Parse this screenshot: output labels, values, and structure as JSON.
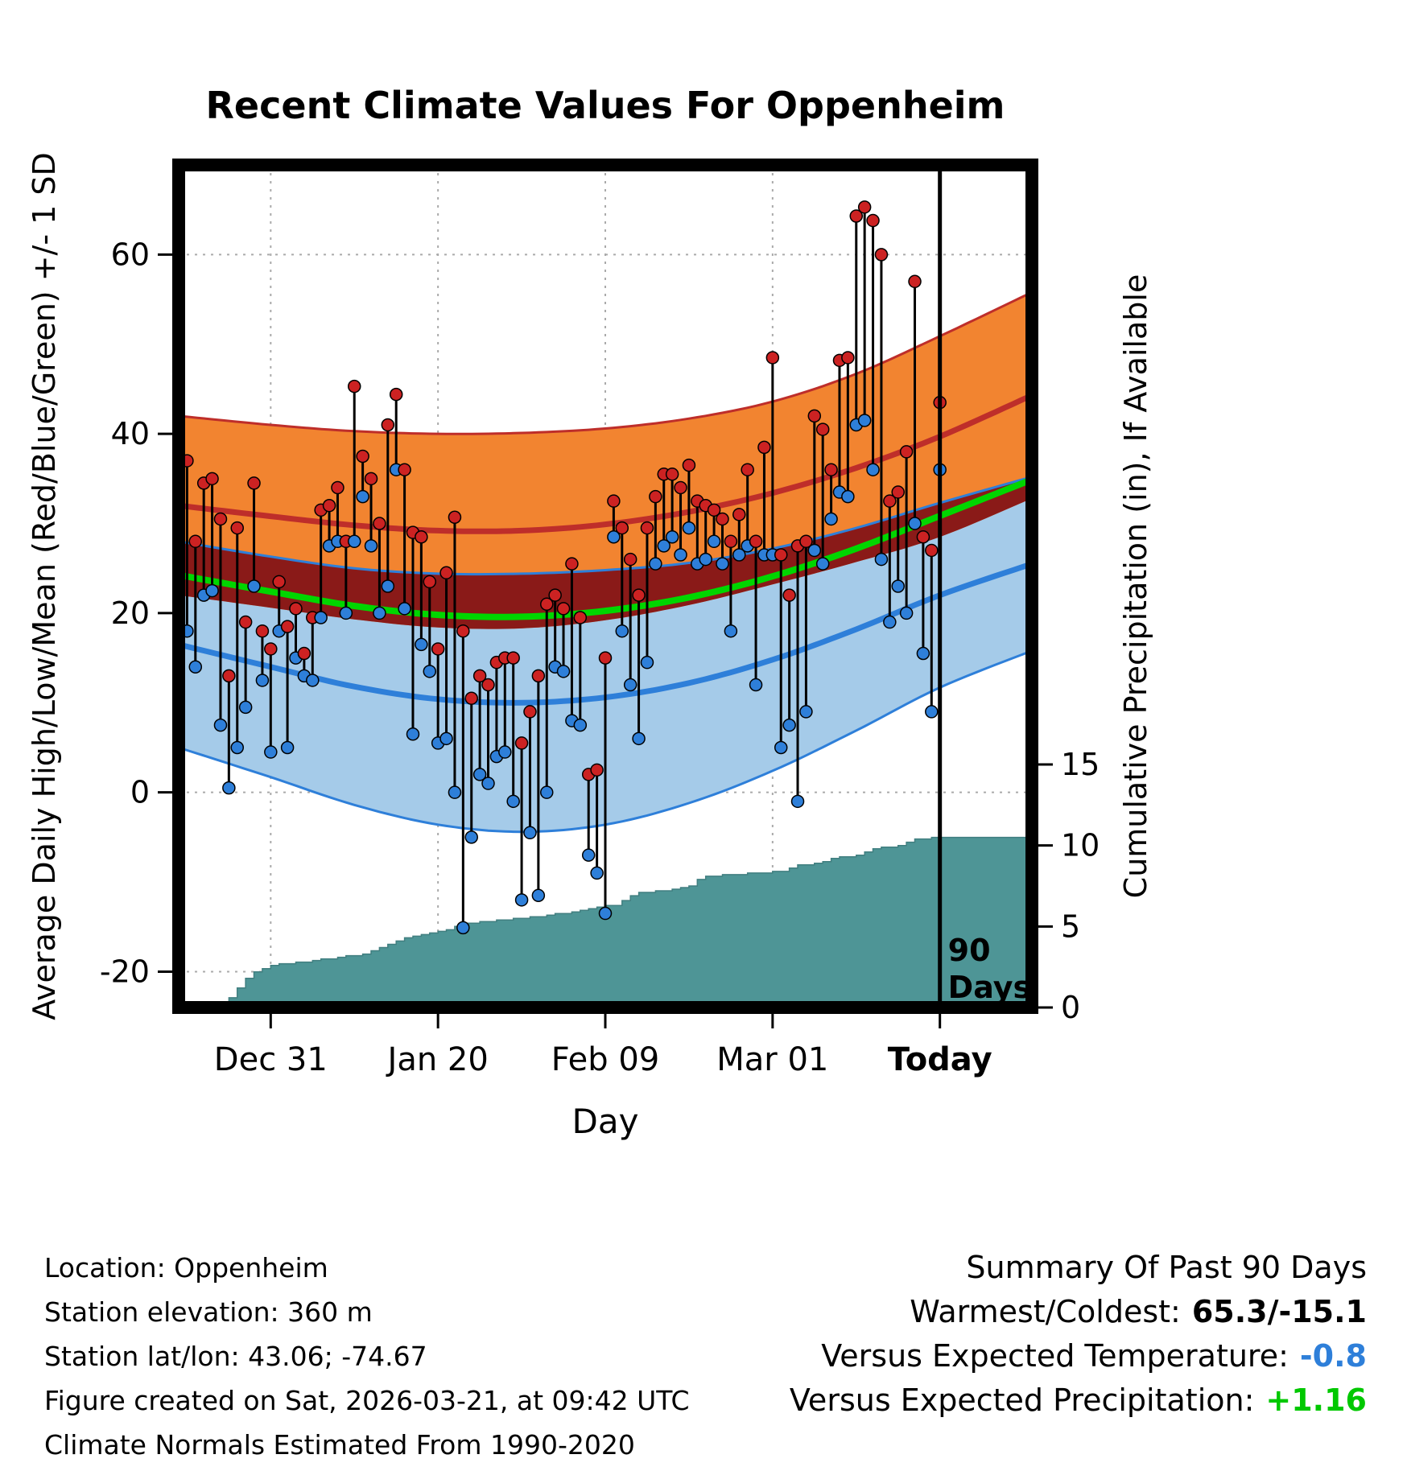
{
  "title": "Recent Climate Values For Oppenheim",
  "footer": {
    "location": "Location: Oppenheim",
    "elevation": "Station elevation: 360 m",
    "latlon": "Station lat/lon: 43.06; -74.67",
    "created": "Figure created on Sat, 2026-03-21, at 09:42 UTC",
    "normals_note": "Climate Normals Estimated From 1990-2020"
  },
  "summary": {
    "title": "Summary Of Past 90 Days",
    "warmest_label": "Warmest/Coldest:",
    "warmest_value": "65.3/-15.1",
    "temp_label": "Versus Expected Temperature:",
    "temp_value": "-0.8",
    "precip_label": "Versus Expected Precipitation:",
    "precip_value": "+1.16"
  },
  "colors": {
    "high_band": "#F28430",
    "high_line": "#BE2E2A",
    "low_band": "#A5CBE9",
    "low_line": "#2E7FD9",
    "overlap_band": "#8A1A18",
    "mean_line": "#00D600",
    "precip_fill": "#4E9596",
    "precip_edge": "#417F80",
    "grid": "#AAAAAA",
    "frame": "#000000",
    "obs_line": "#000000",
    "high_dot": "#CC2222",
    "low_dot": "#2E7FD9",
    "summary_temp": "#2E7FD9",
    "summary_precip": "#00C800"
  },
  "chart_data": {
    "type": "combo",
    "subtypes": [
      "band",
      "line",
      "scatter-range",
      "step-area"
    ],
    "title": "Recent Climate Values For Oppenheim",
    "xlabel": "Day",
    "ylabel_left": "Average Daily High/Low/Mean (Red/Blue/Green) +/- 1 SD",
    "ylabel_right": "Cumulative Precipitation (in), If Available",
    "xlim_days": [
      -1,
      101
    ],
    "ylim_left": [
      -24,
      70
    ],
    "ylim_right": [
      0,
      52
    ],
    "x_ticks": [
      {
        "label": "Dec 31",
        "day": 10,
        "bold": false
      },
      {
        "label": "Jan 20",
        "day": 30,
        "bold": false
      },
      {
        "label": "Feb 09",
        "day": 50,
        "bold": false
      },
      {
        "label": "Mar 01",
        "day": 70,
        "bold": false
      },
      {
        "label": "Today",
        "day": 90,
        "bold": true
      }
    ],
    "y_ticks_left": [
      -20,
      0,
      20,
      40,
      60
    ],
    "y_ticks_right": [
      0,
      5,
      10,
      15
    ],
    "marker": {
      "day": 90,
      "label_line1": "90",
      "label_line2": "Days"
    },
    "normals": {
      "days": [
        -1,
        10,
        20,
        30,
        40,
        50,
        60,
        70,
        80,
        90,
        101
      ],
      "high_mean": [
        32.0,
        30.8,
        29.8,
        29.2,
        29.2,
        29.9,
        31.3,
        33.4,
        36.2,
        39.7,
        44.3
      ],
      "high_sd": [
        10.0,
        10.2,
        10.5,
        10.8,
        10.9,
        10.7,
        10.4,
        10.2,
        10.5,
        11.2,
        11.5
      ],
      "low_mean": [
        16.5,
        14.0,
        11.8,
        10.4,
        10.0,
        10.6,
        12.2,
        14.8,
        18.2,
        22.0,
        25.5
      ],
      "low_sd": [
        11.5,
        12.3,
        13.2,
        14.0,
        14.4,
        14.2,
        13.4,
        12.4,
        11.3,
        10.3,
        9.7
      ]
    },
    "daily": {
      "first_day_index": 0,
      "highs": [
        37,
        28,
        34.5,
        35,
        30.5,
        13,
        29.5,
        19,
        34.5,
        18,
        16,
        23.5,
        18.5,
        20.5,
        15.5,
        19.5,
        31.5,
        32,
        34,
        28,
        45.3,
        37.5,
        35,
        30,
        41,
        44.4,
        36,
        29,
        28.5,
        23.5,
        16,
        24.5,
        30.7,
        18,
        10.5,
        13,
        12,
        14.5,
        15,
        15,
        5.5,
        9,
        13,
        21,
        22,
        20.5,
        25.5,
        19.5,
        2,
        2.5,
        15,
        32.5,
        29.5,
        26,
        22,
        29.5,
        33,
        35.5,
        35.5,
        34,
        36.5,
        32.5,
        32,
        31.5,
        30.5,
        28,
        31,
        36,
        28,
        38.5,
        48.5,
        26.5,
        22,
        27.5,
        28,
        42,
        40.5,
        36,
        48.2,
        48.5,
        64.3,
        65.3,
        63.8,
        60,
        32.5,
        33.5,
        38,
        57,
        28.5,
        27,
        43.5
      ],
      "lows": [
        18,
        14,
        22,
        22.5,
        7.5,
        0.5,
        5,
        9.5,
        23,
        12.5,
        4.5,
        18,
        5,
        15,
        13,
        12.5,
        19.5,
        27.5,
        28,
        20,
        28,
        33,
        27.5,
        20,
        23,
        36,
        20.5,
        6.5,
        16.5,
        13.5,
        5.5,
        6,
        0,
        -15.1,
        -5,
        2,
        1,
        4,
        4.5,
        -1,
        -12,
        -4.5,
        -11.5,
        0,
        14,
        13.5,
        8,
        7.5,
        -7,
        -9,
        -13.5,
        28.5,
        18,
        12,
        6,
        14.5,
        25.5,
        27.5,
        28.5,
        26.5,
        29.5,
        25.5,
        26,
        28,
        25.5,
        18,
        26.5,
        27.5,
        12,
        26.5,
        26.5,
        5,
        7.5,
        -1,
        9,
        27,
        25.5,
        30.5,
        33.5,
        33,
        41,
        41.5,
        36,
        26,
        19,
        23,
        20,
        30,
        15.5,
        9,
        36
      ]
    },
    "precip_cumulative_in": [
      0,
      0,
      0,
      0.1,
      0.3,
      0.6,
      1.2,
      1.8,
      2.2,
      2.4,
      2.6,
      2.7,
      2.7,
      2.8,
      2.8,
      2.9,
      3.0,
      3.0,
      3.1,
      3.2,
      3.2,
      3.3,
      3.5,
      3.7,
      3.9,
      4.1,
      4.3,
      4.4,
      4.5,
      4.6,
      4.7,
      4.8,
      5.0,
      5.2,
      5.2,
      5.3,
      5.3,
      5.4,
      5.4,
      5.5,
      5.5,
      5.6,
      5.6,
      5.7,
      5.8,
      5.8,
      5.9,
      6.0,
      6.1,
      6.2,
      6.3,
      6.3,
      6.6,
      6.9,
      7.1,
      7.1,
      7.2,
      7.2,
      7.3,
      7.4,
      7.5,
      7.9,
      8.1,
      8.1,
      8.2,
      8.2,
      8.2,
      8.3,
      8.3,
      8.3,
      8.4,
      8.4,
      8.6,
      8.8,
      8.8,
      8.9,
      9.0,
      9.2,
      9.3,
      9.3,
      9.4,
      9.6,
      9.8,
      9.9,
      9.9,
      10.0,
      10.2,
      10.4,
      10.4,
      10.5,
      10.5
    ]
  }
}
